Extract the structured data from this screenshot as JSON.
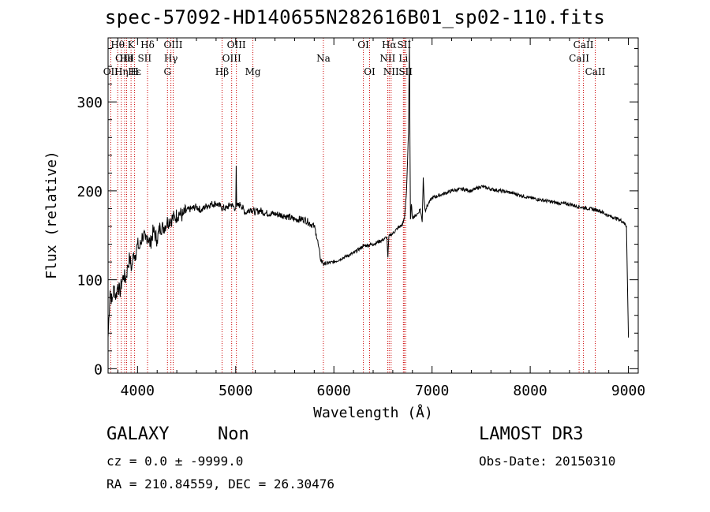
{
  "chart_data": {
    "type": "line",
    "title": "spec-57092-HD140655N282616B01_sp02-110.fits",
    "xlabel": "Wavelength (Å)",
    "ylabel": "Flux (relative)",
    "xlim": [
      3700,
      9100
    ],
    "ylim": [
      -5,
      372
    ],
    "x_ticks": [
      4000,
      5000,
      6000,
      7000,
      8000,
      9000
    ],
    "x_tick_labels": [
      "4000",
      "5000",
      "6000",
      "7000",
      "8000",
      "9000"
    ],
    "y_ticks": [
      0,
      100,
      200,
      300
    ],
    "y_tick_labels": [
      "0",
      "100",
      "200",
      "300"
    ],
    "series": [
      {
        "x": [
          3700,
          3720,
          3740,
          3760,
          3780,
          3800,
          3820,
          3840,
          3860,
          3880,
          3900,
          3920,
          3940,
          3960,
          3980,
          4000,
          4020,
          4050,
          4080,
          4100,
          4130,
          4160,
          4200,
          4230,
          4260,
          4300,
          4340,
          4380,
          4420,
          4460,
          4500,
          4550,
          4600,
          4650,
          4700,
          4750,
          4800,
          4850,
          4900,
          4950,
          5000,
          5005,
          5010,
          5050,
          5100,
          5150,
          5200,
          5250,
          5300,
          5400,
          5500,
          5600,
          5700,
          5800,
          5820,
          5840,
          5860,
          5880,
          5900,
          6000,
          6100,
          6200,
          6300,
          6400,
          6500,
          6540,
          6550,
          6560,
          6570,
          6600,
          6650,
          6700,
          6720,
          6740,
          6760,
          6770,
          6775,
          6780,
          6790,
          6800,
          6830,
          6860,
          6880,
          6900,
          6910,
          6920,
          6930,
          6940,
          6960,
          7000,
          7100,
          7200,
          7300,
          7400,
          7500,
          7600,
          7700,
          7800,
          7900,
          8000,
          8100,
          8200,
          8300,
          8400,
          8500,
          8600,
          8700,
          8800,
          8850,
          8900,
          8950,
          8980,
          9000
        ],
        "y": [
          35,
          88,
          75,
          92,
          80,
          95,
          85,
          98,
          105,
          100,
          115,
          125,
          112,
          130,
          128,
          140,
          135,
          150,
          145,
          150,
          140,
          155,
          145,
          160,
          158,
          165,
          168,
          170,
          175,
          172,
          178,
          180,
          182,
          178,
          183,
          185,
          186,
          182,
          180,
          185,
          180,
          228,
          182,
          185,
          175,
          180,
          176,
          178,
          175,
          174,
          172,
          168,
          168,
          160,
          152,
          140,
          125,
          120,
          118,
          120,
          125,
          130,
          138,
          140,
          145,
          148,
          125,
          148,
          150,
          152,
          158,
          162,
          170,
          200,
          265,
          370,
          250,
          168,
          185,
          170,
          172,
          175,
          180,
          165,
          215,
          190,
          178,
          180,
          185,
          192,
          196,
          200,
          202,
          200,
          205,
          202,
          200,
          198,
          195,
          192,
          190,
          188,
          186,
          185,
          182,
          180,
          178,
          172,
          170,
          168,
          165,
          160,
          35
        ]
      }
    ],
    "line_markers": [
      {
        "label": "OII",
        "x": 3727,
        "row": 2
      },
      {
        "label": "OIII",
        "x": 3869,
        "row": 1
      },
      {
        "label": "Hθ",
        "x": 3798,
        "row": 0
      },
      {
        "label": "He",
        "x": 3889,
        "row": 1
      },
      {
        "label": "Hε",
        "x": 3970,
        "row": 2
      },
      {
        "label": "Hη",
        "x": 3835,
        "row": 2
      },
      {
        "label": "K",
        "x": 3934,
        "row": 0
      },
      {
        "label": "I",
        "x": 3940,
        "row": 1
      },
      {
        "label": "H",
        "x": 3968,
        "row": 2
      },
      {
        "label": "Hδ",
        "x": 4102,
        "row": 0
      },
      {
        "label": "SII",
        "x": 4072,
        "row": 1
      },
      {
        "label": "OIII",
        "x": 4363,
        "row": 0
      },
      {
        "label": "Hγ",
        "x": 4340,
        "row": 1
      },
      {
        "label": "G",
        "x": 4305,
        "row": 2
      },
      {
        "label": "OIII",
        "x": 5007,
        "row": 0
      },
      {
        "label": "OIII",
        "x": 4959,
        "row": 1
      },
      {
        "label": "Hβ",
        "x": 4861,
        "row": 2
      },
      {
        "label": "Mg",
        "x": 5175,
        "row": 2
      },
      {
        "label": "Na",
        "x": 5893,
        "row": 1
      },
      {
        "label": "OI",
        "x": 6300,
        "row": 0
      },
      {
        "label": "OI",
        "x": 6364,
        "row": 2
      },
      {
        "label": "Hα",
        "x": 6563,
        "row": 0
      },
      {
        "label": "SII",
        "x": 6716,
        "row": 0
      },
      {
        "label": "NII",
        "x": 6548,
        "row": 1
      },
      {
        "label": "Li",
        "x": 6708,
        "row": 1
      },
      {
        "label": "NII",
        "x": 6583,
        "row": 2
      },
      {
        "label": "SII",
        "x": 6731,
        "row": 2
      },
      {
        "label": "CaII",
        "x": 8542,
        "row": 0
      },
      {
        "label": "CaII",
        "x": 8498,
        "row": 1
      },
      {
        "label": "CaII",
        "x": 8662,
        "row": 2
      }
    ],
    "marker_lines_x": [
      3727,
      3798,
      3835,
      3869,
      3889,
      3934,
      3970,
      4102,
      4305,
      4340,
      4363,
      4861,
      4959,
      5007,
      5175,
      5893,
      6300,
      6364,
      6548,
      6563,
      6583,
      6708,
      6716,
      6731,
      8498,
      8542,
      8662
    ],
    "grid": false,
    "legend": "none"
  },
  "info": {
    "class": "GALAXY",
    "subclass": "Non",
    "survey": "LAMOST DR3",
    "cz": "cz = 0.0 ± -9999.0",
    "obs_date": "Obs-Date: 20150310",
    "radec": "RA = 210.84559, DEC =  26.30476"
  },
  "colors": {
    "axis": "#000000",
    "spectrum": "#000000",
    "marker_lines": "#cc0000"
  }
}
